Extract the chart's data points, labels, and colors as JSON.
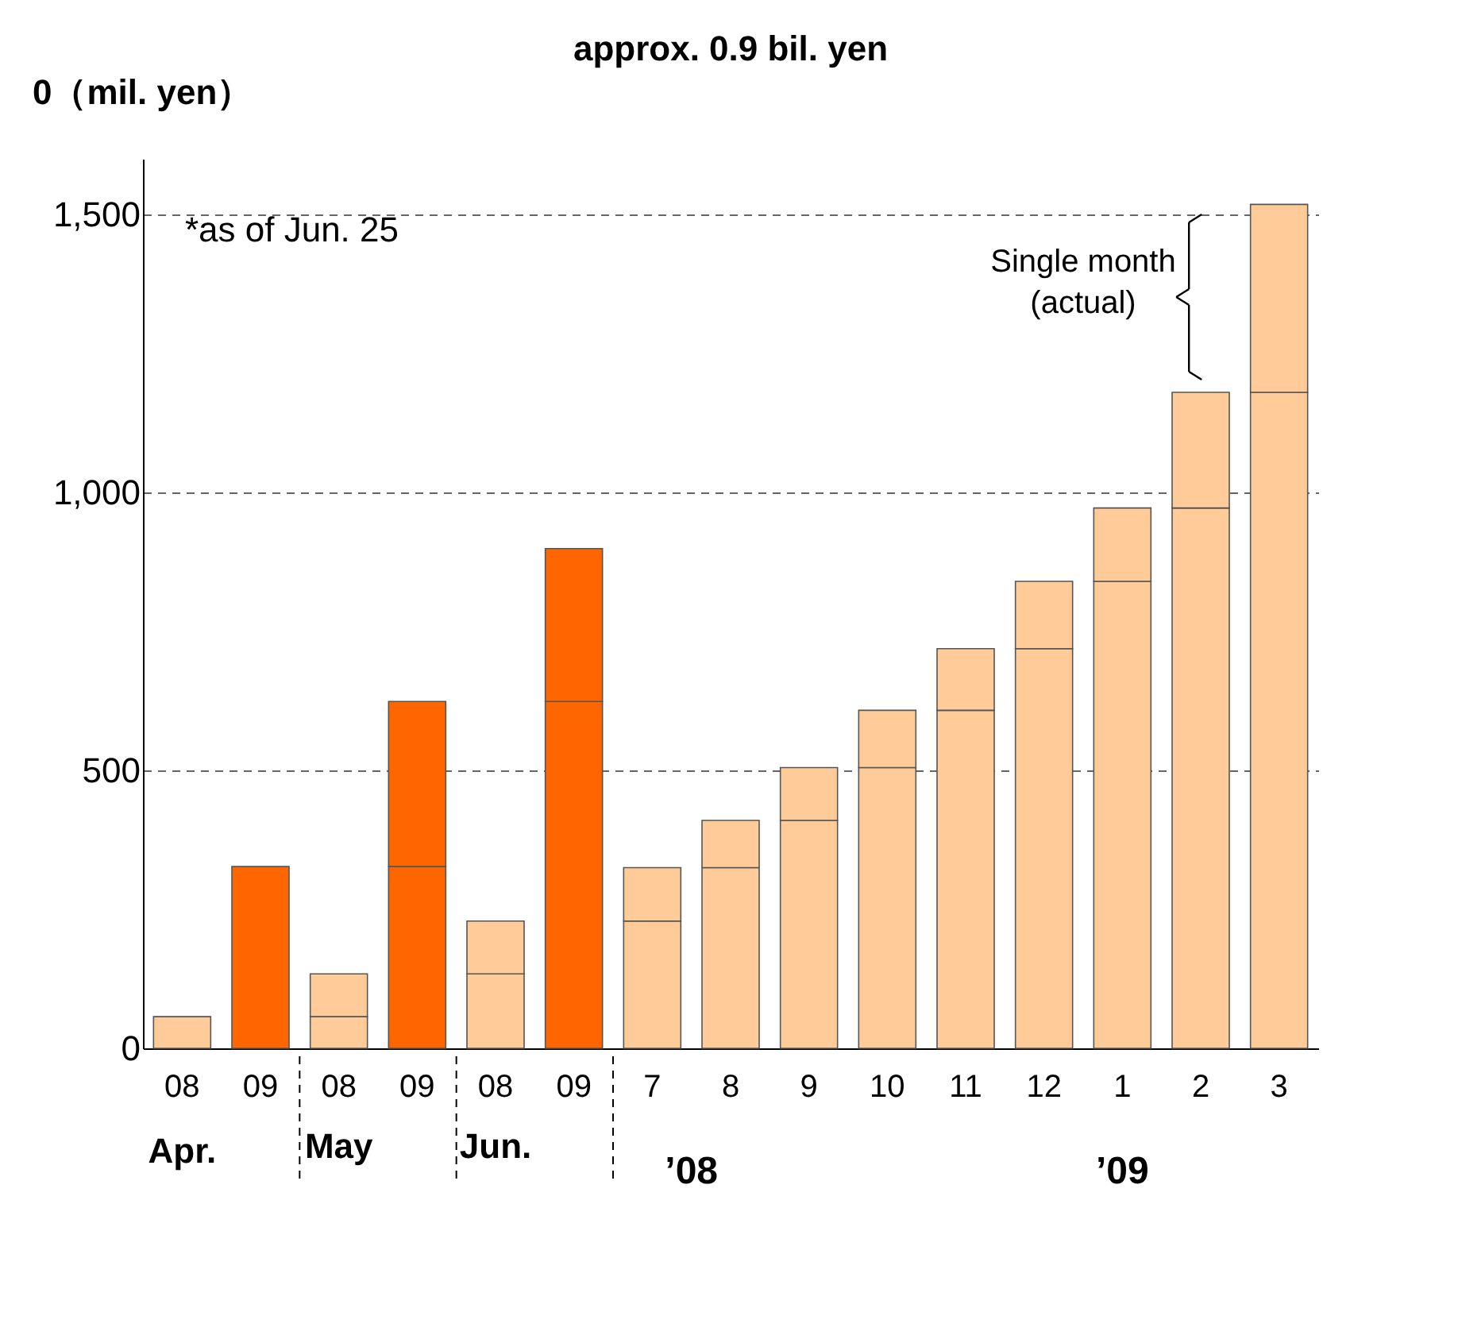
{
  "chart_data": {
    "type": "bar",
    "stacked": true,
    "title": "approx. 0.9 bil. yen",
    "ylabel": "0（mil. yen）",
    "categories": [
      "08",
      "09",
      "08",
      "09",
      "08",
      "09",
      "7",
      "8",
      "9",
      "10",
      "11",
      "12",
      "1",
      "2",
      "3"
    ],
    "series": [
      {
        "colors": [
          "#ffcc99",
          "#ff6600",
          "#ffcc99",
          "#ff6600",
          "#ffcc99",
          "#ff6600",
          "#ffcc99",
          "#ffcc99",
          "#ffcc99",
          "#ffcc99",
          "#ffcc99",
          "#ffcc99",
          "#ffcc99",
          "#ffcc99",
          "#ffcc99"
        ],
        "values": [
          57,
          327,
          57,
          327,
          134,
          624,
          229,
          325,
          410,
          505,
          608,
          719,
          840,
          972,
          1180
        ]
      },
      {
        "colors": [
          "#ffcc99",
          "#ff6600",
          "#ffcc99",
          "#ff6600",
          "#ffcc99",
          "#ff6600",
          "#ffcc99",
          "#ffcc99",
          "#ffcc99",
          "#ffcc99",
          "#ffcc99",
          "#ffcc99",
          "#ffcc99",
          "#ffcc99",
          "#ffcc99"
        ],
        "values": [
          null,
          null,
          77,
          297,
          95,
          275,
          96,
          85,
          95,
          103,
          111,
          121,
          132,
          208,
          338
        ]
      }
    ],
    "ylim": [
      0,
      1600
    ],
    "yticks": [
      0,
      500,
      {
        "value": 1000,
        "label": "1,000"
      },
      {
        "value": 1500,
        "label": "1,500"
      }
    ],
    "grid": "y",
    "annotations": [
      "Apr.",
      "May",
      "Jun.",
      "’08",
      "’09",
      "*as of Jun. 25",
      "Single month\n(actual)"
    ]
  }
}
